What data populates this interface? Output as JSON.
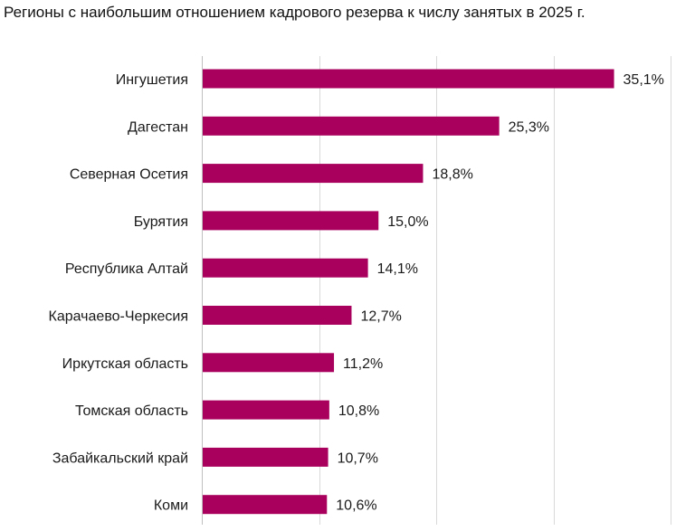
{
  "chart_data": {
    "type": "bar",
    "orientation": "horizontal",
    "title": "Регионы с наибольшим отношением кадрового резерва к числу занятых в 2025 г.",
    "categories": [
      "Ингушетия",
      "Дагестан",
      "Северная Осетия",
      "Бурятия",
      "Республика Алтай",
      "Карачаево-Черкесия",
      "Иркутская область",
      "Томская область",
      "Забайкальский край",
      "Коми"
    ],
    "values": [
      35.1,
      25.3,
      18.8,
      15.0,
      14.1,
      12.7,
      11.2,
      10.8,
      10.7,
      10.6
    ],
    "value_labels": [
      "35,1%",
      "25,3%",
      "18,8%",
      "15,0%",
      "14,1%",
      "12,7%",
      "11,2%",
      "10,8%",
      "10,7%",
      "10,6%"
    ],
    "unit": "%",
    "xlim": [
      0,
      40
    ],
    "grid": true,
    "legend": "none",
    "colors": {
      "bar": "#a8005c",
      "grid": "#d9d9d9",
      "axis": "#bfbfbf",
      "text": "#1a1a1a"
    }
  }
}
